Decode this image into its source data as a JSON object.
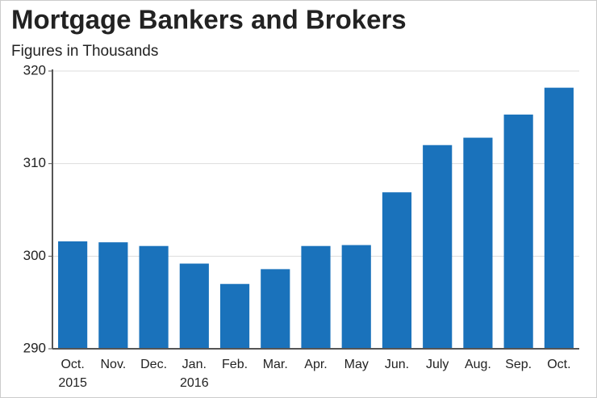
{
  "chart_data": {
    "type": "bar",
    "title": "Mortgage Bankers and Brokers",
    "subtitle": "Figures in Thousands",
    "categories": [
      "Oct.",
      "Nov.",
      "Dec.",
      "Jan.",
      "Feb.",
      "Mar.",
      "Apr.",
      "May",
      "Jun.",
      "July",
      "Aug.",
      "Sep.",
      "Oct."
    ],
    "sublabels": [
      "2015",
      null,
      null,
      "2016",
      null,
      null,
      null,
      null,
      null,
      null,
      null,
      null,
      null
    ],
    "values": [
      301.6,
      301.5,
      301.1,
      299.2,
      297.0,
      298.6,
      301.1,
      301.2,
      306.9,
      312.0,
      312.8,
      315.3,
      318.2
    ],
    "color": "#1a72bb",
    "ylim": [
      290,
      320
    ],
    "yticks": [
      290,
      300,
      310,
      320
    ],
    "grid": true
  }
}
